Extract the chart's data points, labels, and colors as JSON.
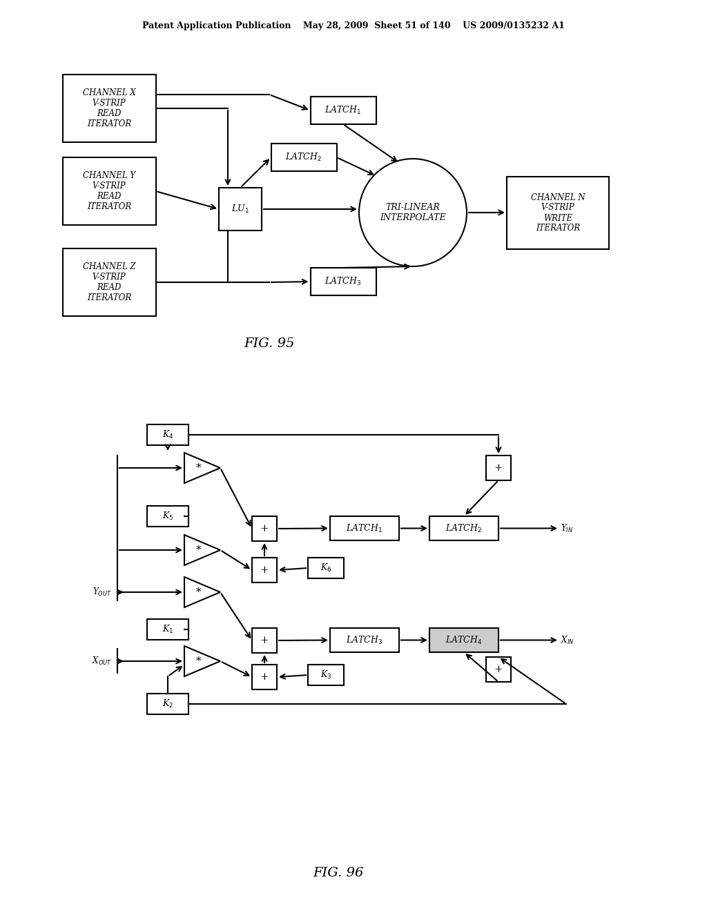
{
  "bg_color": "#ffffff",
  "header_text": "Patent Application Publication    May 28, 2009  Sheet 51 of 140    US 2009/0135232 A1",
  "fig95_title": "FIG. 95",
  "fig96_title": "FIG. 96"
}
